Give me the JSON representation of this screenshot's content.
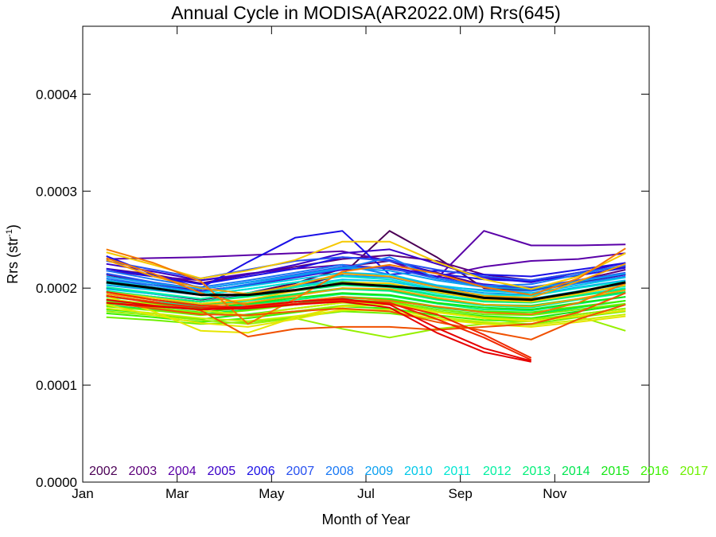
{
  "chart_data": {
    "type": "line",
    "title": "Annual Cycle in MODISA(AR2022.0M) Rrs(645)",
    "xlabel": "Month of Year",
    "ylabel_base": "Rrs (str",
    "ylabel_sup": "-1",
    "ylabel_close": ")",
    "xlim": [
      0,
      12
    ],
    "ylim": [
      0,
      0.00047
    ],
    "x_ticks": [
      {
        "value": 0,
        "label": "Jan"
      },
      {
        "value": 2,
        "label": "Mar"
      },
      {
        "value": 4,
        "label": "May"
      },
      {
        "value": 6,
        "label": "Jul"
      },
      {
        "value": 8,
        "label": "Sep"
      },
      {
        "value": 10,
        "label": "Nov"
      }
    ],
    "y_ticks": [
      {
        "value": 0,
        "label": "0.0000"
      },
      {
        "value": 0.0001,
        "label": "0.0001"
      },
      {
        "value": 0.0002,
        "label": "0.0002"
      },
      {
        "value": 0.0003,
        "label": "0.0003"
      },
      {
        "value": 0.0004,
        "label": "0.0004"
      }
    ],
    "x": [
      0.5,
      1.5,
      2.5,
      3.5,
      4.5,
      5.5,
      6.5,
      7.5,
      8.5,
      9.5,
      10.5,
      11.5
    ],
    "legend_placement": "bottom",
    "series": [
      {
        "name": "2002",
        "color": "#4b0055",
        "values": [
          [
            0.0002,
            0.000194,
            0.000188,
            0.000195,
            0.000205,
            0.00022,
            null,
            null,
            null,
            null,
            null,
            null
          ],
          [
            0.000196,
            0.000191,
            0.000186,
            0.000193,
            0.000201,
            0.000214,
            0.000259,
            0.000232,
            0.0002,
            0.000198,
            0.000206,
            0.000214
          ]
        ]
      },
      {
        "name": "2003",
        "color": "#5c007a",
        "values": [
          [
            0.00022,
            0.000214,
            0.000205,
            0.000214,
            0.000222,
            0.00023,
            0.000234,
            0.000228,
            0.000214,
            0.000208,
            0.000216,
            0.000222
          ],
          [
            0.000214,
            0.000205,
            0.000197,
            0.000203,
            0.000212,
            0.000222,
            0.000228,
            0.000216,
            0.000203,
            0.000199,
            0.000208,
            0.000219
          ]
        ]
      },
      {
        "name": "2004",
        "color": "#5a00a8",
        "values": [
          [
            0.00023,
            0.000231,
            0.000232,
            0.000234,
            0.000236,
            0.000238,
            0.000228,
            0.00021,
            0.000259,
            0.000244,
            0.000244,
            0.000245
          ],
          [
            0.000218,
            0.000212,
            0.000208,
            0.000215,
            0.00022,
            0.000224,
            0.00022,
            0.000212,
            0.000222,
            0.000228,
            0.00023,
            0.000236
          ]
        ]
      },
      {
        "name": "2005",
        "color": "#3a00c8",
        "values": [
          [
            0.000225,
            0.000217,
            0.000208,
            0.000214,
            0.000224,
            0.000236,
            0.00024,
            0.000225,
            0.000211,
            0.000206,
            0.000216,
            0.000226
          ],
          [
            0.000208,
            0.000203,
            0.000197,
            0.000203,
            0.000211,
            0.000219,
            0.000222,
            0.000212,
            0.000204,
            0.0002,
            0.000207,
            0.000214
          ]
        ]
      },
      {
        "name": "2006",
        "color": "#1a10e6",
        "values": [
          [
            0.000233,
            0.000214,
            0.0002,
            0.000227,
            0.000252,
            0.000259,
            0.000214,
            0.000218,
            0.000214,
            0.000212,
            0.000219,
            0.000226
          ],
          [
            0.00022,
            0.000212,
            0.000204,
            0.000212,
            0.00022,
            0.000232,
            0.000229,
            0.000215,
            0.000209,
            0.000207,
            0.000213,
            0.000221
          ]
        ]
      },
      {
        "name": "2007",
        "color": "#2650f0",
        "values": [
          [
            0.000228,
            0.000219,
            0.00021,
            0.000219,
            0.000228,
            0.000232,
            0.000228,
            0.000219,
            0.000212,
            0.000208,
            0.000216,
            0.000223
          ],
          [
            0.000215,
            0.000206,
            0.000199,
            0.000206,
            0.000214,
            0.000222,
            0.000221,
            0.00021,
            0.000203,
            0.000201,
            0.000208,
            0.000216
          ]
        ]
      },
      {
        "name": "2008",
        "color": "#1878f5",
        "values": [
          [
            0.00021,
            0.000203,
            0.000196,
            0.000204,
            0.000212,
            0.00022,
            0.000232,
            0.00021,
            0.000202,
            0.000204,
            0.000214,
            0.000224
          ],
          [
            0.000218,
            0.000209,
            0.000201,
            0.000208,
            0.000216,
            0.000224,
            0.000214,
            0.000202,
            0.000198,
            0.000197,
            0.000205,
            0.000212
          ]
        ]
      },
      {
        "name": "2009",
        "color": "#0aa0f0",
        "values": [
          [
            0.000212,
            0.000205,
            0.000199,
            0.000206,
            0.000213,
            0.000221,
            0.000218,
            0.000208,
            0.000201,
            0.000199,
            0.000207,
            0.000215
          ],
          [
            0.000203,
            0.000198,
            0.000193,
            0.000199,
            0.000206,
            0.000213,
            0.000211,
            0.000201,
            0.000195,
            0.000193,
            0.000201,
            0.000208
          ]
        ]
      },
      {
        "name": "2010",
        "color": "#00c8e8",
        "values": [
          [
            0.000208,
            0.000201,
            0.000195,
            0.000202,
            0.000209,
            0.000216,
            0.000214,
            0.000203,
            0.000197,
            0.000195,
            0.000203,
            0.000211
          ],
          [
            0.000199,
            0.000194,
            0.000189,
            0.000195,
            0.000202,
            0.000209,
            0.000207,
            0.000198,
            0.000191,
            0.000189,
            0.000197,
            0.000204
          ]
        ]
      },
      {
        "name": "2011",
        "color": "#00e6d2",
        "values": [
          [
            0.000205,
            0.000199,
            0.000193,
            0.000199,
            0.000206,
            0.000212,
            0.000209,
            0.000199,
            0.000193,
            0.000192,
            0.0002,
            0.000207
          ],
          [
            0.000196,
            0.000191,
            0.000186,
            0.000192,
            0.000198,
            0.000204,
            0.000202,
            0.000193,
            0.000187,
            0.000186,
            0.000193,
            0.0002
          ]
        ]
      },
      {
        "name": "2012",
        "color": "#00f0a0",
        "values": [
          [
            0.000201,
            0.000195,
            0.000189,
            0.000195,
            0.000201,
            0.000207,
            0.000204,
            0.000195,
            0.000189,
            0.000188,
            0.000195,
            0.000202
          ],
          [
            0.000191,
            0.000186,
            0.000181,
            0.000187,
            0.000193,
            0.000199,
            0.000197,
            0.000188,
            0.000182,
            0.00018,
            0.000188,
            0.000195
          ]
        ]
      },
      {
        "name": "2013",
        "color": "#00f078",
        "values": [
          [
            0.000197,
            0.000191,
            0.000186,
            0.000191,
            0.000197,
            0.000203,
            0.000201,
            0.000192,
            0.000186,
            0.000185,
            0.000192,
            0.000199
          ],
          [
            0.000187,
            0.000182,
            0.000177,
            0.000183,
            0.000188,
            0.000194,
            0.000192,
            0.000184,
            0.000178,
            0.000177,
            0.000184,
            0.000191
          ]
        ]
      },
      {
        "name": "2014",
        "color": "#00e650",
        "values": [
          [
            0.000194,
            0.000188,
            0.000183,
            0.000188,
            0.000194,
            0.0002,
            0.000198,
            0.000189,
            0.000183,
            0.000182,
            0.000189,
            0.000196
          ],
          [
            0.000182,
            0.000178,
            0.000173,
            0.000178,
            0.000184,
            0.00019,
            0.000188,
            0.00018,
            0.000175,
            0.000173,
            0.00018,
            0.000187
          ]
        ]
      },
      {
        "name": "2015",
        "color": "#14e614",
        "values": [
          [
            0.000188,
            0.000184,
            0.000179,
            0.000184,
            0.00019,
            0.000195,
            0.000193,
            0.000185,
            0.00018,
            0.000178,
            0.000185,
            0.000191
          ],
          [
            0.000178,
            0.000174,
            0.000168,
            0.000173,
            0.000179,
            0.000185,
            0.000183,
            0.000176,
            0.000171,
            0.000169,
            0.000176,
            0.000183
          ]
        ]
      },
      {
        "name": "2016",
        "color": "#3cf000",
        "values": [
          [
            0.000184,
            0.00018,
            0.000175,
            0.00018,
            0.000186,
            0.000191,
            0.000189,
            0.000181,
            0.000176,
            0.000175,
            0.000181,
            0.000187
          ],
          [
            0.000174,
            0.00017,
            0.000165,
            0.000169,
            0.000175,
            0.000181,
            0.000179,
            0.000172,
            0.000167,
            0.000166,
            0.000173,
            0.000179
          ]
        ]
      },
      {
        "name": "2017",
        "color": "#6ef000",
        "values": [
          [
            0.000181,
            0.000177,
            0.000172,
            0.000177,
            0.000183,
            0.000188,
            0.000186,
            0.000178,
            0.000173,
            0.000172,
            0.000178,
            0.000184
          ],
          [
            0.00017,
            0.000167,
            0.000163,
            0.000165,
            0.00017,
            0.000176,
            0.000174,
            0.000168,
            0.000164,
            0.000163,
            0.00017,
            0.000176
          ]
        ]
      },
      {
        "name": "",
        "color": "#96f000",
        "values": [
          [
            0.000186,
            0.00018,
            0.000174,
            0.000171,
            0.000176,
            0.000182,
            0.000185,
            0.000176,
            0.00017,
            0.000168,
            0.000173,
            0.000179
          ],
          [
            0.000176,
            0.000172,
            0.000167,
            0.000163,
            0.000169,
            0.000158,
            0.000149,
            0.000158,
            0.000163,
            0.000166,
            0.000171,
            0.000156
          ]
        ]
      },
      {
        "name": "",
        "color": "#c8f000",
        "values": [
          [
            0.000189,
            0.000183,
            0.000177,
            0.000172,
            0.000179,
            0.000185,
            0.000184,
            0.000175,
            0.000169,
            0.000166,
            0.000171,
            0.000177
          ],
          [
            0.000179,
            0.000174,
            0.000169,
            0.000166,
            0.000171,
            0.000177,
            0.000178,
            0.00017,
            0.000165,
            0.000162,
            0.000167,
            0.000173
          ]
        ]
      },
      {
        "name": "",
        "color": "#e6e600",
        "values": [
          [
            0.000192,
            0.000176,
            0.000156,
            0.000154,
            0.00017,
            0.000181,
            0.000183,
            0.000175,
            0.000169,
            0.000166,
            0.000171,
            0.000177
          ],
          [
            0.000183,
            0.000172,
            0.000164,
            0.00016,
            0.000168,
            0.000178,
            0.000176,
            0.000168,
            0.000163,
            0.00016,
            0.000165,
            0.000171
          ]
        ]
      },
      {
        "name": "",
        "color": "#f5c800",
        "values": [
          [
            0.000237,
            0.000224,
            0.00021,
            0.000218,
            0.000229,
            0.000248,
            0.000248,
            0.000227,
            0.000209,
            0.000199,
            0.000212,
            0.000236
          ],
          [
            0.000196,
            0.00019,
            0.000184,
            0.000188,
            0.000197,
            0.000206,
            0.000205,
            0.000196,
            0.000188,
            0.000186,
            0.000194,
            0.000203
          ]
        ]
      },
      {
        "name": "",
        "color": "#f5a000",
        "values": [
          [
            0.000229,
            0.000212,
            0.0002,
            0.000194,
            0.000203,
            0.000215,
            0.000212,
            0.000201,
            0.000192,
            0.00019,
            0.000207,
            0.000225
          ],
          [
            0.000194,
            0.000188,
            0.000182,
            0.000185,
            0.000192,
            0.0002,
            0.000199,
            0.00019,
            0.000183,
            0.000181,
            0.000189,
            0.000198
          ]
        ]
      },
      {
        "name": "",
        "color": "#f57800",
        "values": [
          [
            0.00024,
            0.000226,
            0.000207,
            0.000163,
            0.000189,
            0.000217,
            0.000224,
            0.000215,
            0.000201,
            0.000193,
            0.00021,
            0.000241
          ],
          [
            0.000231,
            0.000215,
            0.000195,
            0.000182,
            0.000186,
            0.000191,
            0.000187,
            0.000181,
            0.000175,
            0.000173,
            0.000185,
            0.000205
          ]
        ]
      },
      {
        "name": "",
        "color": "#f05000",
        "values": [
          [
            0.000192,
            0.000186,
            0.000177,
            0.00015,
            0.000158,
            0.00016,
            0.00016,
            0.000157,
            0.00016,
            0.000163,
            0.000175,
            0.000195
          ],
          [
            0.000185,
            0.000179,
            0.000173,
            0.000172,
            0.000176,
            0.000179,
            0.000176,
            0.000165,
            0.000156,
            0.000147,
            0.000168,
            0.000183
          ]
        ]
      },
      {
        "name": "",
        "color": "#f02800",
        "values": [
          [
            0.000196,
            0.000188,
            0.000182,
            0.00018,
            0.000184,
            0.000187,
            0.000184,
            0.000173,
            0.000152,
            0.000128,
            null,
            null
          ],
          [
            0.000192,
            0.000185,
            0.00018,
            0.00018,
            0.000183,
            0.000188,
            0.000185,
            0.000168,
            0.000149,
            0.000126,
            null,
            null
          ]
        ]
      },
      {
        "name": "",
        "color": "#e60000",
        "values": [
          [
            0.000188,
            0.000182,
            0.000178,
            0.000181,
            0.000186,
            0.000189,
            0.000183,
            0.000159,
            0.000138,
            0.000125,
            null,
            null
          ],
          [
            0.000185,
            0.000181,
            0.000178,
            0.000179,
            0.000183,
            0.000186,
            0.00018,
            0.000154,
            0.000134,
            0.000124,
            null,
            null
          ]
        ]
      },
      {
        "name": "",
        "color": "#000000",
        "width": 3,
        "values": [
          [
            0.000206,
            0.0002,
            0.000193,
            0.000193,
            0.000198,
            0.000205,
            0.000202,
            0.000198,
            0.00019,
            0.000188,
            0.000196,
            0.000206
          ]
        ]
      }
    ]
  }
}
